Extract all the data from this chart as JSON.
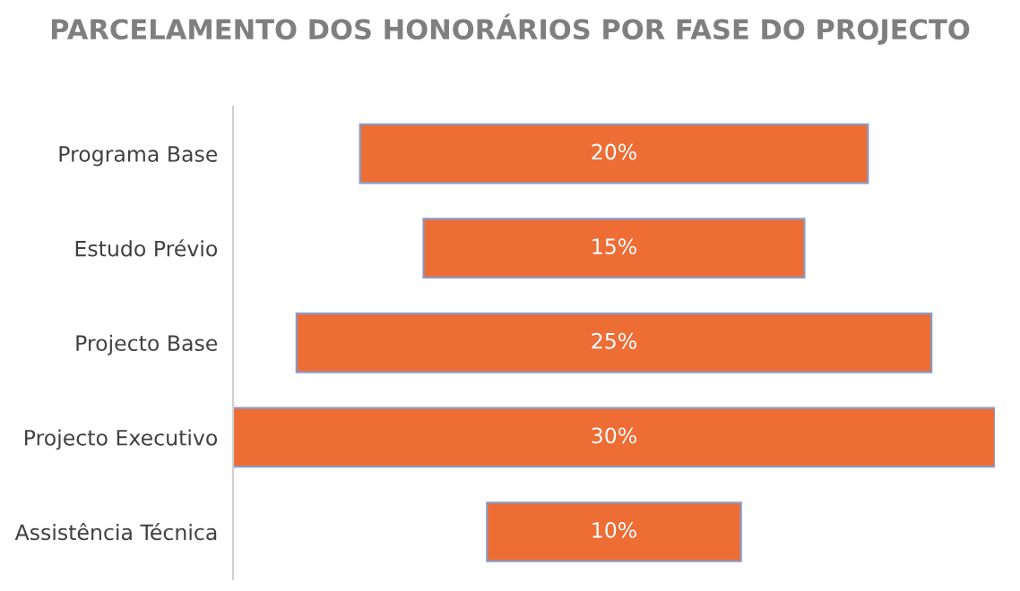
{
  "chart_data": {
    "type": "other",
    "title": "PARCELAMENTO DOS HONORÁRIOS POR FASE DO PROJECTO",
    "categories": [
      "Programa Base",
      "Estudo Prévio",
      "Projecto Base",
      "Projecto Executivo",
      "Assistência Técnica"
    ],
    "values": [
      20,
      15,
      25,
      30,
      10
    ],
    "value_labels": [
      "20%",
      "15%",
      "25%",
      "30%",
      "10%"
    ],
    "color": "#ed6d35"
  }
}
